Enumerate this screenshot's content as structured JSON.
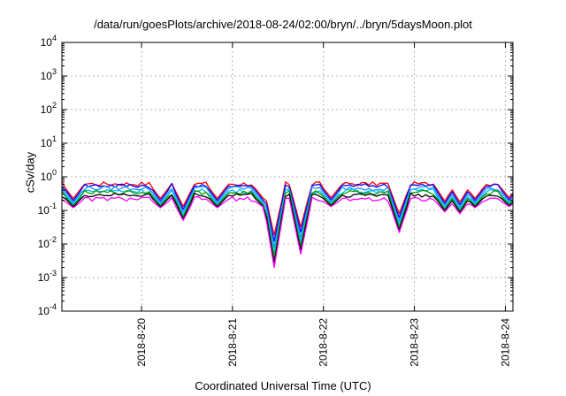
{
  "chart_data": {
    "type": "line",
    "title": "/data/run/goesPlots/archive/2018-08-24/02:00/bryn/../bryn/5daysMoon.plot",
    "xlabel": "Coordinated Universal Time (UTC)",
    "ylabel": "cSv/day",
    "yscale": "log",
    "ylim": [
      0.0001,
      10000
    ],
    "y_ticks": [
      {
        "exp": "-4",
        "value": 0.0001
      },
      {
        "exp": "-3",
        "value": 0.001
      },
      {
        "exp": "-2",
        "value": 0.01
      },
      {
        "exp": "-1",
        "value": 0.1
      },
      {
        "exp": "0",
        "value": 1
      },
      {
        "exp": "1",
        "value": 10
      },
      {
        "exp": "2",
        "value": 100
      },
      {
        "exp": "3",
        "value": 1000
      },
      {
        "exp": "4",
        "value": 10000
      }
    ],
    "xlim": [
      "2018-08-19 03:00",
      "2018-08-24 02:00"
    ],
    "x_tick_labels": [
      "2018-8-20",
      "2018-8-21",
      "2018-8-22",
      "2018-8-23",
      "2018-8-24"
    ],
    "grid": true,
    "series": [
      {
        "color": "#ff0000",
        "base": 0.62
      },
      {
        "color": "#0000ff",
        "base": 0.55
      },
      {
        "color": "#1e90ff",
        "base": 0.46
      },
      {
        "color": "#00c0ff",
        "base": 0.38
      },
      {
        "color": "#00a000",
        "base": 0.34
      },
      {
        "color": "#000000",
        "base": 0.29
      },
      {
        "color": "#ff00ff",
        "base": 0.22
      }
    ],
    "dips": [
      {
        "time": "2018-08-19 06:00",
        "min": 0.12
      },
      {
        "time": "2018-08-20 05:00",
        "min": 0.12
      },
      {
        "time": "2018-08-20 11:00",
        "min": 0.05
      },
      {
        "time": "2018-08-20 20:00",
        "min": 0.12
      },
      {
        "time": "2018-08-21 08:00",
        "min": 0.13
      },
      {
        "time": "2018-08-21 11:00",
        "min": 0.002
      },
      {
        "time": "2018-08-21 18:00",
        "min": 0.005
      },
      {
        "time": "2018-08-22 02:00",
        "min": 0.13
      },
      {
        "time": "2018-08-22 20:00",
        "min": 0.022
      },
      {
        "time": "2018-08-23 08:00",
        "min": 0.09
      },
      {
        "time": "2018-08-23 12:00",
        "min": 0.08
      },
      {
        "time": "2018-08-23 16:00",
        "min": 0.12
      },
      {
        "time": "2018-08-24 01:00",
        "min": 0.13
      }
    ]
  }
}
